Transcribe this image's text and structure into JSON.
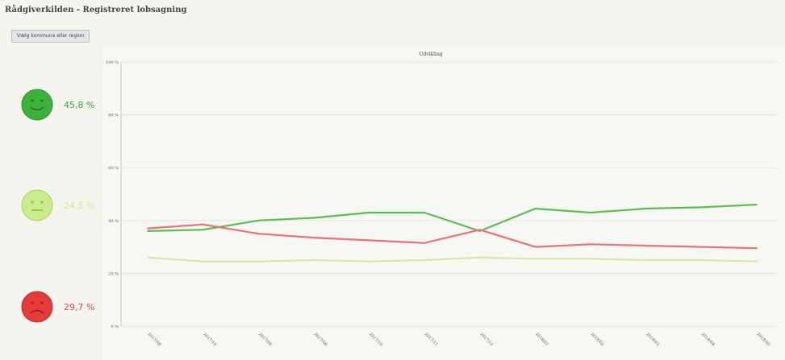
{
  "header": {
    "title": "Rådgiverkilden - Registreret lobsagning",
    "button_label": "Vælg kommune eller region"
  },
  "summary": [
    {
      "icon": "happy-face-icon",
      "value": "45,8 %",
      "color": "#3aa835",
      "face": "#3cb23b",
      "rim": "#2c8f2a"
    },
    {
      "icon": "neutral-face-icon",
      "value": "24,5 %",
      "color": "#d3e28c",
      "face": "#c9ed8b",
      "rim": "#a8cf6a"
    },
    {
      "icon": "sad-face-icon",
      "value": "29,7 %",
      "color": "#e04848",
      "face": "#e53b3b",
      "rim": "#b62a2a"
    }
  ],
  "chart_data": {
    "type": "line",
    "title": "Udvikling",
    "categories": [
      "2017/08",
      "2017/10",
      "2017/08",
      "2017/08",
      "2017/10",
      "2017/11",
      "2017/12",
      "2018/01",
      "2018/02",
      "2018/03",
      "2018/04",
      "2018/05"
    ],
    "ylim": [
      0,
      100
    ],
    "yticks": [
      "0 %",
      "20 %",
      "40 %",
      "60 %",
      "80 %",
      "100 %"
    ],
    "grid": true,
    "legend": "none",
    "series": [
      {
        "color": "#5bbf4f",
        "values": [
          36,
          36.5,
          40,
          41,
          43,
          43,
          36,
          44.5,
          43,
          44.5,
          45,
          46
        ]
      },
      {
        "color": "#e8717a",
        "values": [
          37,
          38.5,
          35,
          33.5,
          32.5,
          31.5,
          36.5,
          30,
          31,
          30.5,
          30,
          29.5
        ]
      },
      {
        "color": "#d7e7a5",
        "values": [
          26,
          24.5,
          24.5,
          25,
          24.5,
          25,
          26,
          25.5,
          25.5,
          25,
          25,
          24.5
        ]
      }
    ]
  }
}
